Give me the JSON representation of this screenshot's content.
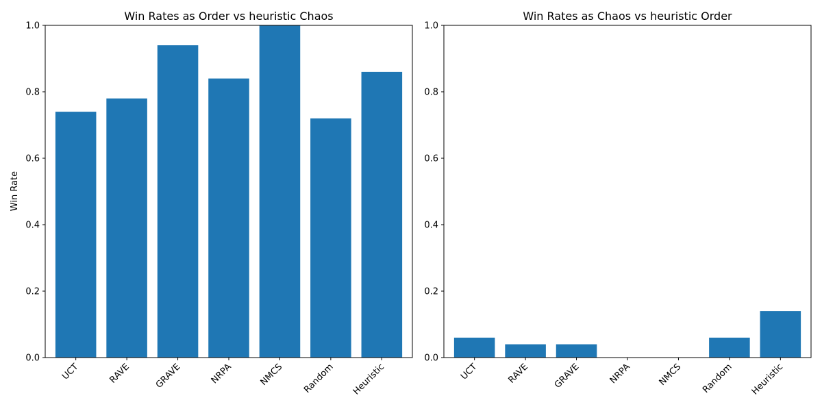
{
  "chart_data": [
    {
      "type": "bar",
      "title": "Win Rates as Order vs heuristic Chaos",
      "xlabel": "",
      "ylabel": "Win Rate",
      "categories": [
        "UCT",
        "RAVE",
        "GRAVE",
        "NRPA",
        "NMCS",
        "Random",
        "Heuristic"
      ],
      "values": [
        0.74,
        0.78,
        0.94,
        0.84,
        1.0,
        0.72,
        0.86
      ],
      "ylim": [
        0,
        1.0
      ],
      "yticks": [
        "0.0",
        "0.2",
        "0.4",
        "0.6",
        "0.8",
        "1.0"
      ],
      "grid": false,
      "bar_color": "#1f77b4",
      "xtick_rotation": 45
    },
    {
      "type": "bar",
      "title": "Win Rates as Chaos vs heuristic Order",
      "xlabel": "",
      "ylabel": "",
      "categories": [
        "UCT",
        "RAVE",
        "GRAVE",
        "NRPA",
        "NMCS",
        "Random",
        "Heuristic"
      ],
      "values": [
        0.06,
        0.04,
        0.04,
        0.0,
        0.0,
        0.06,
        0.14
      ],
      "ylim": [
        0,
        1.0
      ],
      "yticks": [
        "0.0",
        "0.2",
        "0.4",
        "0.6",
        "0.8",
        "1.0"
      ],
      "grid": false,
      "bar_color": "#1f77b4",
      "xtick_rotation": 45
    }
  ]
}
